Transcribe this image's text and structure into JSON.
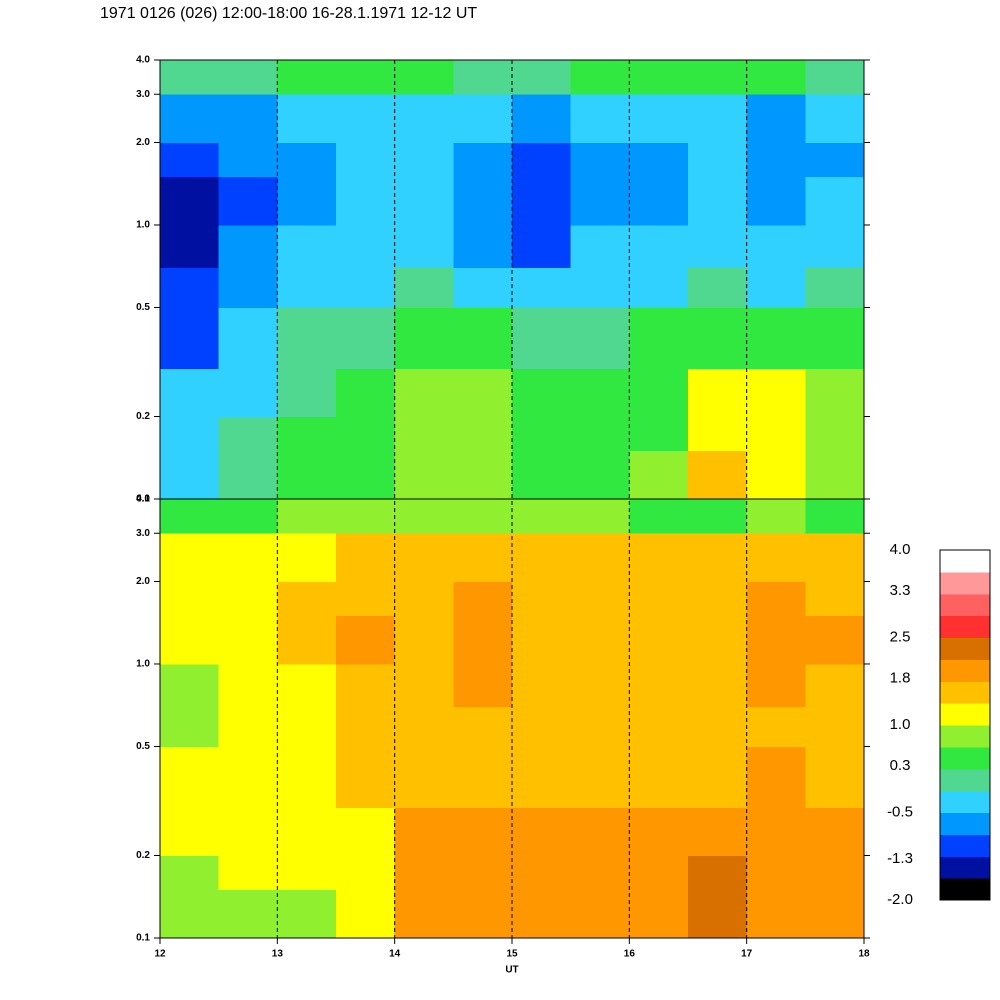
{
  "chart_data": {
    "type": "heatmap",
    "title": "1971 0126 (026) 12:00-18:00 16-28.1.1971  12-12 UT",
    "xlabel": "UT",
    "xlim": [
      12,
      18
    ],
    "xticks": [
      12,
      13,
      14,
      15,
      16,
      17,
      18
    ],
    "log_y": true,
    "x_edges": [
      12,
      12.5,
      13,
      13.5,
      14,
      14.5,
      15,
      15.5,
      16,
      16.5,
      17,
      17.5,
      18
    ],
    "y_edges": [
      0.1,
      0.15,
      0.2,
      0.3,
      0.5,
      0.7,
      1.0,
      1.5,
      2.0,
      3.0,
      4.0
    ],
    "panels": [
      {
        "ylim": [
          0.1,
          4.0
        ],
        "yticks": [
          0.1,
          0.2,
          0.5,
          {
            "value": 1,
            "label": "1.0"
          },
          {
            "value": 2,
            "label": "2.0"
          },
          {
            "value": 3,
            "label": "3.0"
          },
          {
            "value": 4,
            "label": "4.0"
          }
        ],
        "values": [
          [
            -0.2,
            0.0,
            0.3,
            0.4,
            0.9,
            0.8,
            0.5,
            0.6,
            0.7,
            1.4,
            1.0,
            0.8
          ],
          [
            -0.2,
            0.0,
            0.3,
            0.4,
            0.9,
            0.9,
            0.5,
            0.5,
            0.6,
            1.3,
            1.1,
            0.9
          ],
          [
            -0.5,
            -0.3,
            0.2,
            0.3,
            0.8,
            0.8,
            0.4,
            0.4,
            0.5,
            1.0,
            1.1,
            0.8
          ],
          [
            -1.0,
            -0.5,
            0.0,
            0.2,
            0.4,
            0.3,
            0.0,
            0.2,
            0.3,
            0.6,
            0.5,
            0.4
          ],
          [
            -1.2,
            -0.6,
            -0.3,
            -0.2,
            0.0,
            -0.2,
            -0.5,
            -0.3,
            -0.2,
            0.0,
            -0.2,
            -0.1
          ],
          [
            -1.3,
            -0.8,
            -0.5,
            -0.3,
            -0.4,
            -0.6,
            -0.9,
            -0.5,
            -0.4,
            -0.3,
            -0.5,
            -0.4
          ],
          [
            -1.3,
            -0.9,
            -0.6,
            -0.3,
            -0.5,
            -0.8,
            -1.1,
            -0.7,
            -0.6,
            -0.4,
            -0.6,
            -0.5
          ],
          [
            -1.0,
            -0.8,
            -0.6,
            -0.3,
            -0.5,
            -0.7,
            -0.9,
            -0.7,
            -0.6,
            -0.4,
            -0.7,
            -0.6
          ],
          [
            -0.6,
            -0.6,
            -0.5,
            -0.2,
            -0.3,
            -0.5,
            -0.6,
            -0.5,
            -0.5,
            -0.4,
            -0.6,
            -0.5
          ],
          [
            0.2,
            0.2,
            0.3,
            0.3,
            0.3,
            0.2,
            0.2,
            0.3,
            0.3,
            0.3,
            0.3,
            0.2
          ]
        ]
      },
      {
        "ylim": [
          0.1,
          4.0
        ],
        "yticks": [
          0.1,
          0.2,
          0.5,
          {
            "value": 1,
            "label": "1.0"
          },
          {
            "value": 2,
            "label": "2.0"
          },
          {
            "value": 3,
            "label": "3.0"
          },
          {
            "value": 4,
            "label": "4.0"
          }
        ],
        "values": [
          [
            0.9,
            0.9,
            0.9,
            1.0,
            2.0,
            2.0,
            1.9,
            1.9,
            2.1,
            2.3,
            2.1,
            2.0
          ],
          [
            0.9,
            1.0,
            1.0,
            1.1,
            2.0,
            2.0,
            1.9,
            1.9,
            2.1,
            2.2,
            2.1,
            2.0
          ],
          [
            1.0,
            1.1,
            1.2,
            1.3,
            1.9,
            1.9,
            1.8,
            1.8,
            1.9,
            2.0,
            2.0,
            1.9
          ],
          [
            1.0,
            1.2,
            1.3,
            1.5,
            1.7,
            1.7,
            1.6,
            1.6,
            1.6,
            1.7,
            1.8,
            1.7
          ],
          [
            0.8,
            1.0,
            1.2,
            1.4,
            1.5,
            1.6,
            1.5,
            1.4,
            1.4,
            1.5,
            1.7,
            1.6
          ],
          [
            0.9,
            1.1,
            1.3,
            1.6,
            1.6,
            1.8,
            1.6,
            1.5,
            1.4,
            1.5,
            1.8,
            1.7
          ],
          [
            1.0,
            1.2,
            1.4,
            1.8,
            1.7,
            1.9,
            1.7,
            1.6,
            1.5,
            1.6,
            1.9,
            1.8
          ],
          [
            1.0,
            1.2,
            1.4,
            1.7,
            1.7,
            1.8,
            1.6,
            1.6,
            1.5,
            1.6,
            1.8,
            1.7
          ],
          [
            1.0,
            1.1,
            1.3,
            1.5,
            1.5,
            1.6,
            1.5,
            1.4,
            1.4,
            1.4,
            1.5,
            1.4
          ],
          [
            0.5,
            0.6,
            0.7,
            0.7,
            0.8,
            0.7,
            0.7,
            0.7,
            0.6,
            0.6,
            0.7,
            0.6
          ]
        ]
      }
    ],
    "colorbar": {
      "zlim": [
        -2,
        4
      ],
      "colors": [
        "#000000",
        "#0010a0",
        "#0040ff",
        "#0098ff",
        "#30d0ff",
        "#50d890",
        "#30e840",
        "#90f030",
        "#ffff00",
        "#ffc000",
        "#ff9800",
        "#d87000",
        "#ff3030",
        "#ff6060",
        "#ff9898",
        "#ffffff"
      ],
      "ticks": [
        {
          "value": 4,
          "label": "4.0"
        },
        3.3,
        2.5,
        1.8,
        {
          "value": 1,
          "label": "1.0"
        },
        0.3,
        -0.5,
        -1.3,
        {
          "value": -2,
          "label": "-2.0"
        }
      ]
    }
  }
}
